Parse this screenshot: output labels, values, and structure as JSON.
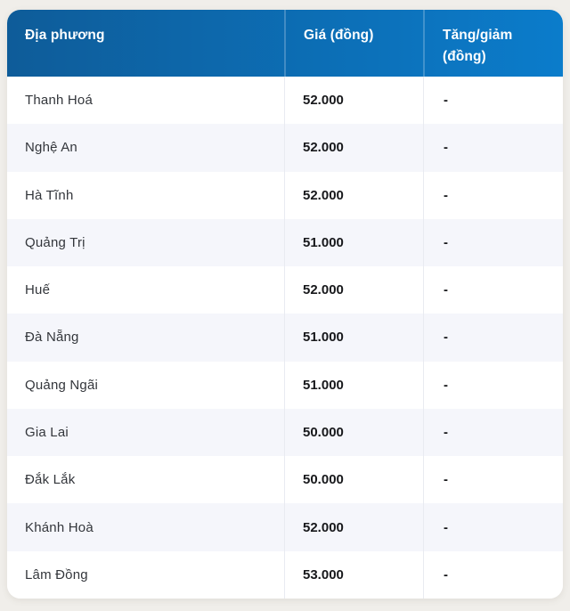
{
  "table": {
    "columns": [
      {
        "label": "Địa phương"
      },
      {
        "label": "Giá (đồng)"
      },
      {
        "label": "Tăng/giảm",
        "label_line2": "(đồng)"
      }
    ],
    "rows": [
      {
        "region": "Thanh Hoá",
        "price": "52.000",
        "change": "-"
      },
      {
        "region": "Nghệ An",
        "price": "52.000",
        "change": "-"
      },
      {
        "region": "Hà Tĩnh",
        "price": "52.000",
        "change": "-"
      },
      {
        "region": "Quảng Trị",
        "price": "51.000",
        "change": "-"
      },
      {
        "region": "Huế",
        "price": "52.000",
        "change": "-"
      },
      {
        "region": "Đà Nẵng",
        "price": "51.000",
        "change": "-"
      },
      {
        "region": "Quảng Ngãi",
        "price": "51.000",
        "change": "-"
      },
      {
        "region": "Gia Lai",
        "price": "50.000",
        "change": "-"
      },
      {
        "region": "Đắk Lắk",
        "price": "50.000",
        "change": "-"
      },
      {
        "region": "Khánh Hoà",
        "price": "52.000",
        "change": "-"
      },
      {
        "region": "Lâm Đồng",
        "price": "53.000",
        "change": "-"
      }
    ]
  },
  "colors": {
    "header_gradient_start": "#0e5c99",
    "header_gradient_end": "#0b7ccb",
    "header_text": "#ffffff",
    "row_bg": "#ffffff",
    "row_alt_bg": "#f5f6fb",
    "region_text": "#33363b",
    "value_text": "#17181b",
    "page_bg": "#f0eeea",
    "divider": "#e9ebf1"
  }
}
